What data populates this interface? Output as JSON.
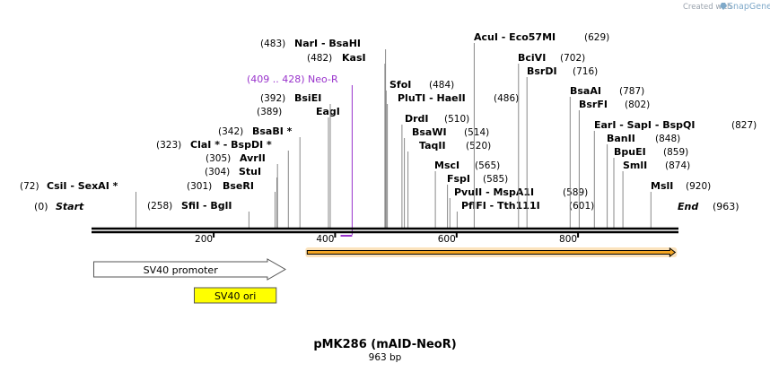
{
  "credit": {
    "prefix": "Created with",
    "brand": "SnapGene"
  },
  "plasmid": {
    "name": "pMK286 (mAID-NeoR)",
    "length_label": "963 bp",
    "length": 963
  },
  "ends": {
    "start_pos": "(0)",
    "start_label": "Start",
    "end_label": "End",
    "end_pos": "(963)"
  },
  "ticks": [
    "200",
    "400",
    "600",
    "800"
  ],
  "tick_values": [
    200,
    400,
    600,
    800
  ],
  "sites": [
    {
      "pos": "(72)",
      "name": "CsiI  -  SexAI *",
      "cut": 72
    },
    {
      "pos": "(258)",
      "name": "SfiI  -  BglI",
      "cut": 258
    },
    {
      "pos": "(301)",
      "name": "BseRI",
      "cut": 301
    },
    {
      "pos": "(304)",
      "name": "StuI",
      "cut": 304
    },
    {
      "pos": "(305)",
      "name": "AvrII",
      "cut": 305
    },
    {
      "pos": "(323)",
      "name": "ClaI *  -  BspDI *",
      "cut": 323
    },
    {
      "pos": "(342)",
      "name": "BsaBI *",
      "cut": 342
    },
    {
      "pos": "(389)",
      "name": "EagI",
      "cut": 389
    },
    {
      "pos": "(392)",
      "name": "BsiEI",
      "cut": 392
    },
    {
      "pos": "(482)",
      "name": "KasI",
      "cut": 482
    },
    {
      "pos": "(483)",
      "name": "NarI  -  BsaHI",
      "cut": 483
    },
    {
      "pos": "(484)",
      "name": "SfoI",
      "cut": 484
    },
    {
      "pos": "(486)",
      "name": "PluTI  -  HaeII",
      "cut": 486
    },
    {
      "pos": "(510)",
      "name": "DrdI",
      "cut": 510
    },
    {
      "pos": "(514)",
      "name": "BsaWI",
      "cut": 514
    },
    {
      "pos": "(520)",
      "name": "TaqII",
      "cut": 520
    },
    {
      "pos": "(565)",
      "name": "MscI",
      "cut": 565
    },
    {
      "pos": "(585)",
      "name": "FspI",
      "cut": 585
    },
    {
      "pos": "(589)",
      "name": "PvuII  -  MspA1I",
      "cut": 589
    },
    {
      "pos": "(601)",
      "name": "PflFI  -  Tth111I",
      "cut": 601
    },
    {
      "pos": "(629)",
      "name": "AcuI  -  Eco57MI",
      "cut": 629
    },
    {
      "pos": "(702)",
      "name": "BciVI",
      "cut": 702
    },
    {
      "pos": "(716)",
      "name": "BsrDI",
      "cut": 716
    },
    {
      "pos": "(787)",
      "name": "BsaAI",
      "cut": 787
    },
    {
      "pos": "(802)",
      "name": "BsrFI",
      "cut": 802
    },
    {
      "pos": "(827)",
      "name": "EarI  -  SapI  -  BspQI",
      "cut": 827
    },
    {
      "pos": "(848)",
      "name": "BanII",
      "cut": 848
    },
    {
      "pos": "(859)",
      "name": "BpuEI",
      "cut": 859
    },
    {
      "pos": "(874)",
      "name": "SmlI",
      "cut": 874
    },
    {
      "pos": "(920)",
      "name": "MslI",
      "cut": 920
    }
  ],
  "primer": {
    "label": "(409 .. 428)  Neo-R",
    "start": 409,
    "end": 428,
    "color": "#9933cc"
  },
  "features": {
    "sv40_promoter": {
      "label": "SV40 promoter",
      "start": 1,
      "end": 318,
      "color": "#ffffff"
    },
    "sv40_ori": {
      "label": "SV40 ori",
      "start": 168,
      "end": 303,
      "color": "#ffff00"
    },
    "orf": {
      "start": 354,
      "end": 963,
      "color": "#f5a623"
    }
  }
}
